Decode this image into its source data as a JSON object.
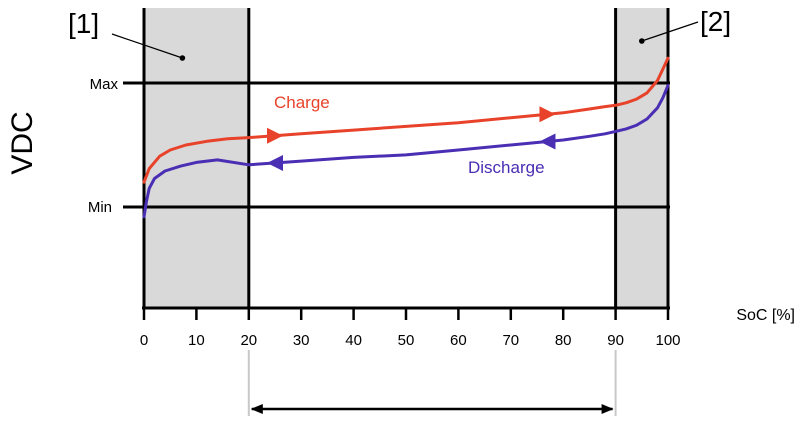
{
  "chart_data": {
    "type": "line",
    "title": "",
    "xlabel": "SoC [%]",
    "ylabel": "VDC",
    "xlim": [
      0,
      100
    ],
    "x_ticks": [
      "0",
      "10",
      "20",
      "30",
      "40",
      "50",
      "60",
      "70",
      "80",
      "90",
      "100"
    ],
    "y_levels": [
      {
        "label": "Max",
        "value": 1.0
      },
      {
        "label": "Min",
        "value": 0.0
      }
    ],
    "shaded_regions": [
      {
        "label": "[1]",
        "from": 0,
        "to": 20
      },
      {
        "label": "[2]",
        "from": 90,
        "to": 100
      }
    ],
    "usable_range": {
      "from": 20,
      "to": 90
    },
    "series": [
      {
        "name": "Charge",
        "color": "#e8432a",
        "arrow_direction": "right",
        "x": [
          0,
          1,
          3,
          5,
          8,
          12,
          16,
          20,
          30,
          40,
          50,
          60,
          70,
          80,
          85,
          88,
          90,
          92,
          94,
          96,
          98,
          100
        ],
        "y": [
          0.2,
          0.31,
          0.41,
          0.46,
          0.5,
          0.53,
          0.55,
          0.56,
          0.59,
          0.62,
          0.65,
          0.68,
          0.72,
          0.76,
          0.79,
          0.81,
          0.82,
          0.84,
          0.87,
          0.92,
          1.02,
          1.2
        ]
      },
      {
        "name": "Discharge",
        "color": "#4a2eb4",
        "arrow_direction": "left",
        "x": [
          0,
          0.5,
          1,
          2,
          4,
          7,
          10,
          14,
          20,
          30,
          40,
          50,
          60,
          70,
          80,
          85,
          88,
          90,
          92,
          94,
          96,
          98,
          99,
          100
        ],
        "y": [
          -0.08,
          0.05,
          0.15,
          0.23,
          0.29,
          0.33,
          0.36,
          0.38,
          0.34,
          0.37,
          0.4,
          0.42,
          0.46,
          0.5,
          0.54,
          0.57,
          0.59,
          0.61,
          0.63,
          0.66,
          0.71,
          0.8,
          0.88,
          0.98
        ]
      }
    ]
  }
}
